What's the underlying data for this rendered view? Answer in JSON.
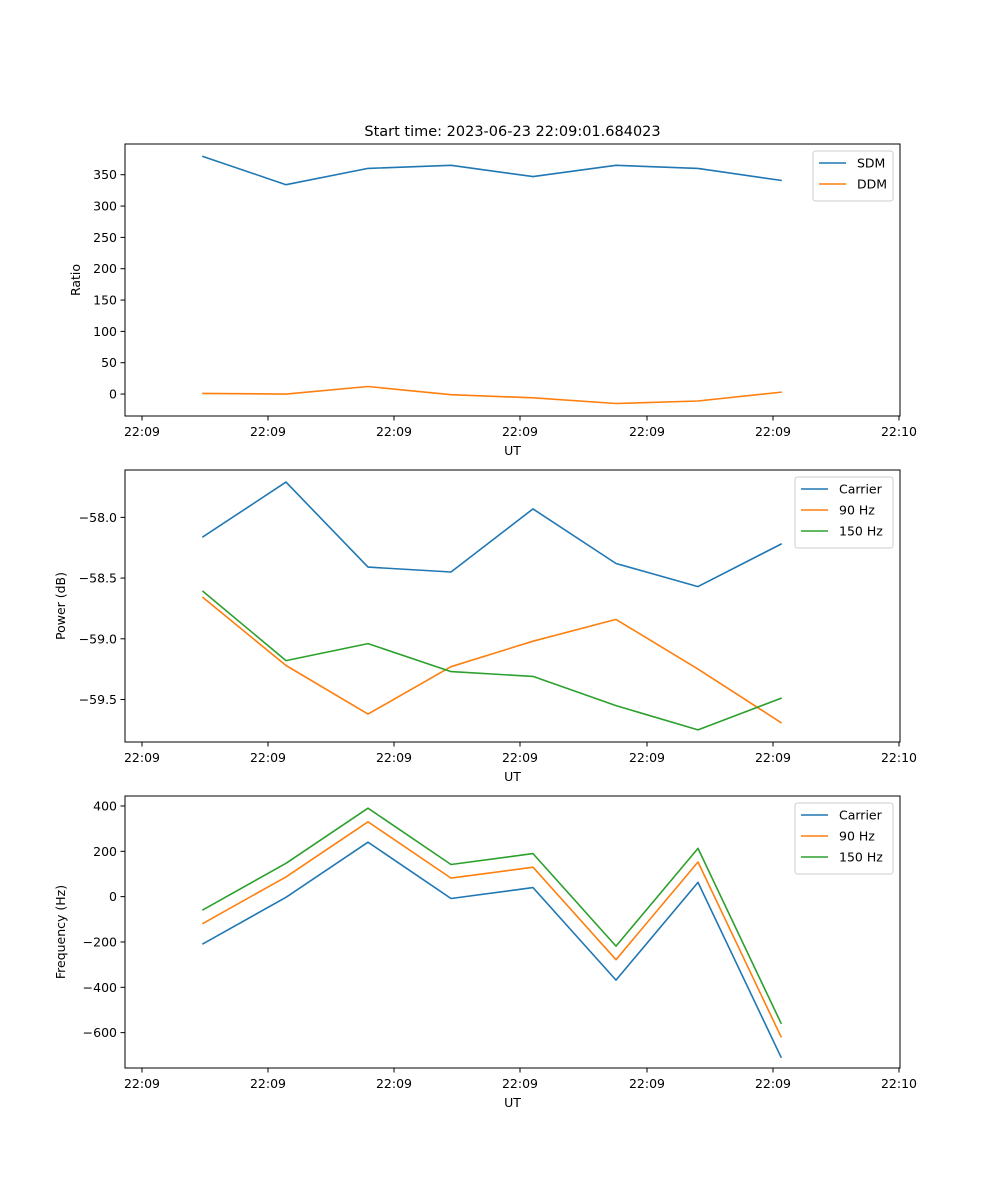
{
  "title": "Start time: 2023-06-23 22:09:01.684023",
  "colors": {
    "blue": "#1f77b4",
    "orange": "#ff7f0e",
    "green": "#2ca02c"
  },
  "chart_data": [
    {
      "type": "line",
      "xlabel": "UT",
      "ylabel": "Ratio",
      "x_tick_labels": [
        "22:09",
        "22:09",
        "22:09",
        "22:09",
        "22:09",
        "22:09",
        "22:10"
      ],
      "yticks": [
        0,
        50,
        100,
        150,
        200,
        250,
        300,
        350
      ],
      "ylim": [
        -35,
        399
      ],
      "legend_position": "top-right",
      "grid": false,
      "series": [
        {
          "name": "SDM",
          "color": "#1f77b4",
          "values": [
            379,
            334,
            360,
            365,
            347,
            365,
            360,
            341
          ]
        },
        {
          "name": "DDM",
          "color": "#ff7f0e",
          "values": [
            1,
            0,
            12,
            -1,
            -6,
            -15,
            -11,
            3
          ]
        }
      ]
    },
    {
      "type": "line",
      "xlabel": "UT",
      "ylabel": "Power (dB)",
      "x_tick_labels": [
        "22:09",
        "22:09",
        "22:09",
        "22:09",
        "22:09",
        "22:09",
        "22:10"
      ],
      "yticks": [
        -59.5,
        -59.0,
        -58.5,
        -58.0
      ],
      "ytick_labels": [
        "−59.5",
        "−59.0",
        "−58.5",
        "−58.0"
      ],
      "ylim": [
        -59.85,
        -57.61
      ],
      "legend_position": "top-right",
      "grid": false,
      "series": [
        {
          "name": "Carrier",
          "color": "#1f77b4",
          "values": [
            -58.16,
            -57.71,
            -58.41,
            -58.45,
            -57.93,
            -58.38,
            -58.57,
            -58.22
          ]
        },
        {
          "name": "90 Hz",
          "color": "#ff7f0e",
          "values": [
            -58.66,
            -59.22,
            -59.62,
            -59.23,
            -59.02,
            -58.84,
            -59.25,
            -59.69
          ]
        },
        {
          "name": "150 Hz",
          "color": "#2ca02c",
          "values": [
            -58.61,
            -59.18,
            -59.04,
            -59.27,
            -59.31,
            -59.55,
            -59.75,
            -59.49
          ]
        }
      ]
    },
    {
      "type": "line",
      "xlabel": "UT",
      "ylabel": "Frequency (Hz)",
      "x_tick_labels": [
        "22:09",
        "22:09",
        "22:09",
        "22:09",
        "22:09",
        "22:09",
        "22:10"
      ],
      "yticks": [
        -600,
        -400,
        -200,
        0,
        200,
        400
      ],
      "ytick_labels": [
        "−600",
        "−400",
        "−200",
        "0",
        "200",
        "400"
      ],
      "ylim": [
        -756,
        444
      ],
      "legend_position": "top-right",
      "grid": false,
      "series": [
        {
          "name": "Carrier",
          "color": "#1f77b4",
          "values": [
            -208,
            -3,
            240,
            -8,
            40,
            -368,
            63,
            -708
          ]
        },
        {
          "name": "90 Hz",
          "color": "#ff7f0e",
          "values": [
            -118,
            87,
            330,
            82,
            130,
            -278,
            153,
            -618
          ]
        },
        {
          "name": "150 Hz",
          "color": "#2ca02c",
          "values": [
            -58,
            147,
            390,
            142,
            190,
            -218,
            213,
            -558
          ]
        }
      ]
    }
  ]
}
